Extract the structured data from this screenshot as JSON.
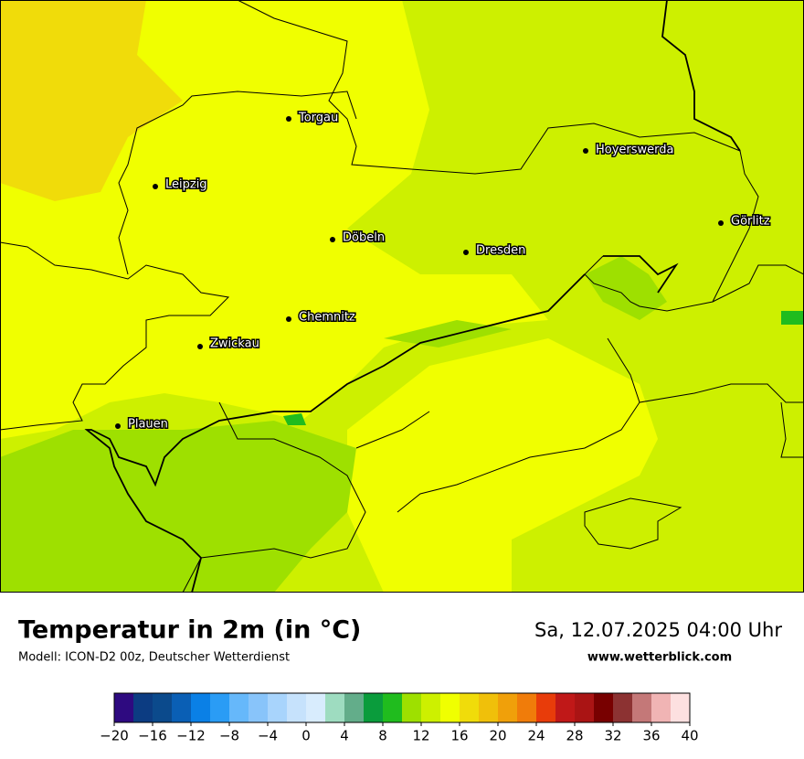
{
  "title": "Temperatur in 2m (in °C)",
  "subtitle": "Modell: ICON-D2 00z, Deutscher Wetterdienst",
  "datetime": "Sa, 12.07.2025 04:00 Uhr",
  "website": "www.wetterblick.com",
  "cities": [
    "Torgau",
    "Hoyerswerda",
    "Leipzig",
    "Görlitz",
    "Döbeln",
    "Dresden",
    "Chemnitz",
    "Zwickau",
    "Plauen"
  ],
  "colorbar": {
    "colors": [
      "#2e0a80",
      "#0c3c82",
      "#0b4a8c",
      "#0a5fb5",
      "#0a80e6",
      "#2a9cf5",
      "#66b8fa",
      "#88c4fa",
      "#a8d4fc",
      "#c6e2fc",
      "#d8ecfd",
      "#9edcc0",
      "#63ad8a",
      "#0a9c3c",
      "#20bc1e",
      "#9ee000",
      "#cdf000",
      "#f0ff00",
      "#f0dc0a",
      "#f0c00a",
      "#f0a00a",
      "#f07c0a",
      "#e83c0a",
      "#c01818",
      "#aa1414",
      "#780000",
      "#8c3232",
      "#c47878",
      "#f0b4b4",
      "#fde0e0"
    ],
    "ticks": [
      {
        "value": -20,
        "label": "−20"
      },
      {
        "value": -16,
        "label": "−16"
      },
      {
        "value": -12,
        "label": "−12"
      },
      {
        "value": -8,
        "label": "−8"
      },
      {
        "value": -4,
        "label": "−4"
      },
      0,
      4,
      8,
      12,
      16,
      20,
      24,
      28,
      32,
      36,
      40
    ],
    "lim": [
      -20,
      40
    ]
  }
}
